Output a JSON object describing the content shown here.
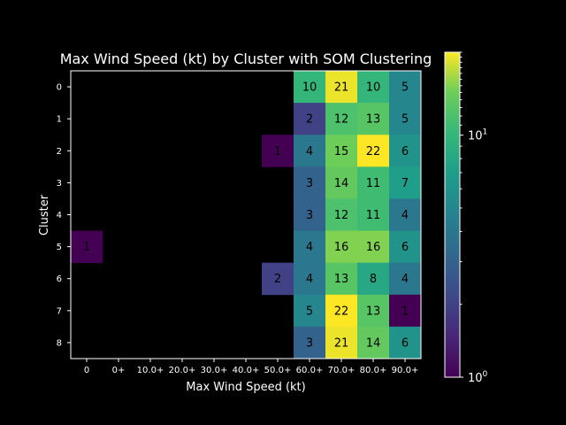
{
  "chart_data": {
    "type": "heatmap",
    "title": "Max Wind Speed (kt) by Cluster with SOM Clustering",
    "xlabel": "Max Wind Speed (kt)",
    "ylabel": "Cluster",
    "x_categories": [
      "0",
      "0+",
      "10.0+",
      "20.0+",
      "30.0+",
      "40.0+",
      "50.0+",
      "60.0+",
      "70.0+",
      "80.0+",
      "90.0+"
    ],
    "y_categories": [
      "0",
      "1",
      "2",
      "3",
      "4",
      "5",
      "6",
      "7",
      "8"
    ],
    "values": [
      [
        null,
        null,
        null,
        null,
        null,
        null,
        null,
        10,
        21,
        10,
        5
      ],
      [
        null,
        null,
        null,
        null,
        null,
        null,
        null,
        2,
        12,
        13,
        5
      ],
      [
        null,
        null,
        null,
        null,
        null,
        null,
        1,
        4,
        15,
        22,
        6
      ],
      [
        null,
        null,
        null,
        null,
        null,
        null,
        null,
        3,
        14,
        11,
        7
      ],
      [
        null,
        null,
        null,
        null,
        null,
        null,
        null,
        3,
        12,
        11,
        4
      ],
      [
        1,
        null,
        null,
        null,
        null,
        null,
        null,
        4,
        16,
        16,
        6
      ],
      [
        null,
        null,
        null,
        null,
        null,
        null,
        2,
        4,
        13,
        8,
        4
      ],
      [
        null,
        null,
        null,
        null,
        null,
        null,
        null,
        5,
        22,
        13,
        1
      ],
      [
        null,
        null,
        null,
        null,
        null,
        null,
        null,
        3,
        21,
        14,
        6
      ]
    ],
    "colormap": "viridis",
    "color_scale": "log",
    "color_range": [
      1,
      22
    ],
    "colorbar_ticks": [
      {
        "value": 1,
        "base": "10",
        "exp": "0"
      },
      {
        "value": 10,
        "base": "10",
        "exp": "1"
      }
    ],
    "empty_cell_color": "#000000",
    "grid": false,
    "legend": "colorbar-right"
  }
}
